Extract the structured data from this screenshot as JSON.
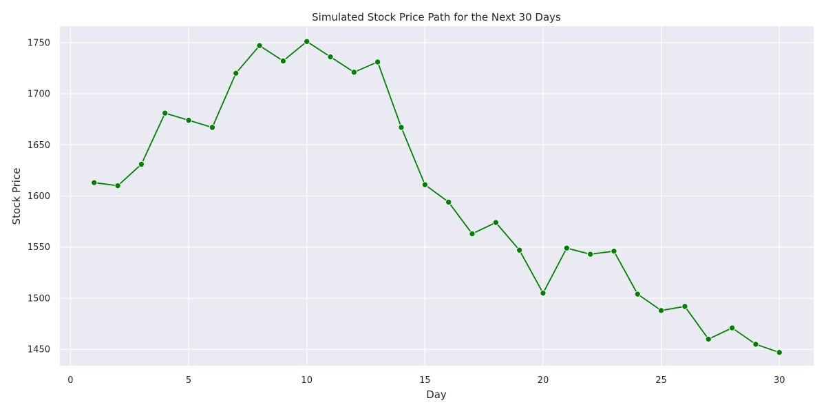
{
  "chart_data": {
    "type": "line",
    "title": "Simulated Stock Price Path for the Next 30 Days",
    "xlabel": "Day",
    "ylabel": "Stock Price",
    "x": [
      1,
      2,
      3,
      4,
      5,
      6,
      7,
      8,
      9,
      10,
      11,
      12,
      13,
      14,
      15,
      16,
      17,
      18,
      19,
      20,
      21,
      22,
      23,
      24,
      25,
      26,
      27,
      28,
      29,
      30
    ],
    "series": [
      {
        "values": [
          1613,
          1610,
          1631,
          1681,
          1674,
          1667,
          1720,
          1747,
          1732,
          1751,
          1736,
          1721,
          1731,
          1667,
          1611,
          1594,
          1563,
          1574,
          1547,
          1505,
          1549,
          1543,
          1546,
          1504,
          1488,
          1492,
          1460,
          1471,
          1455,
          1447
        ]
      }
    ],
    "xticks": [
      0,
      5,
      10,
      15,
      20,
      25,
      30
    ],
    "yticks": [
      1450,
      1500,
      1550,
      1600,
      1650,
      1700,
      1750
    ],
    "xlim": [
      -0.45,
      31.45
    ],
    "ylim": [
      1434,
      1766
    ],
    "grid": true,
    "colors": {
      "line": "#008000",
      "marker": "#008000",
      "plot_background": "#eaeaf2",
      "grid": "#ffffff"
    }
  }
}
